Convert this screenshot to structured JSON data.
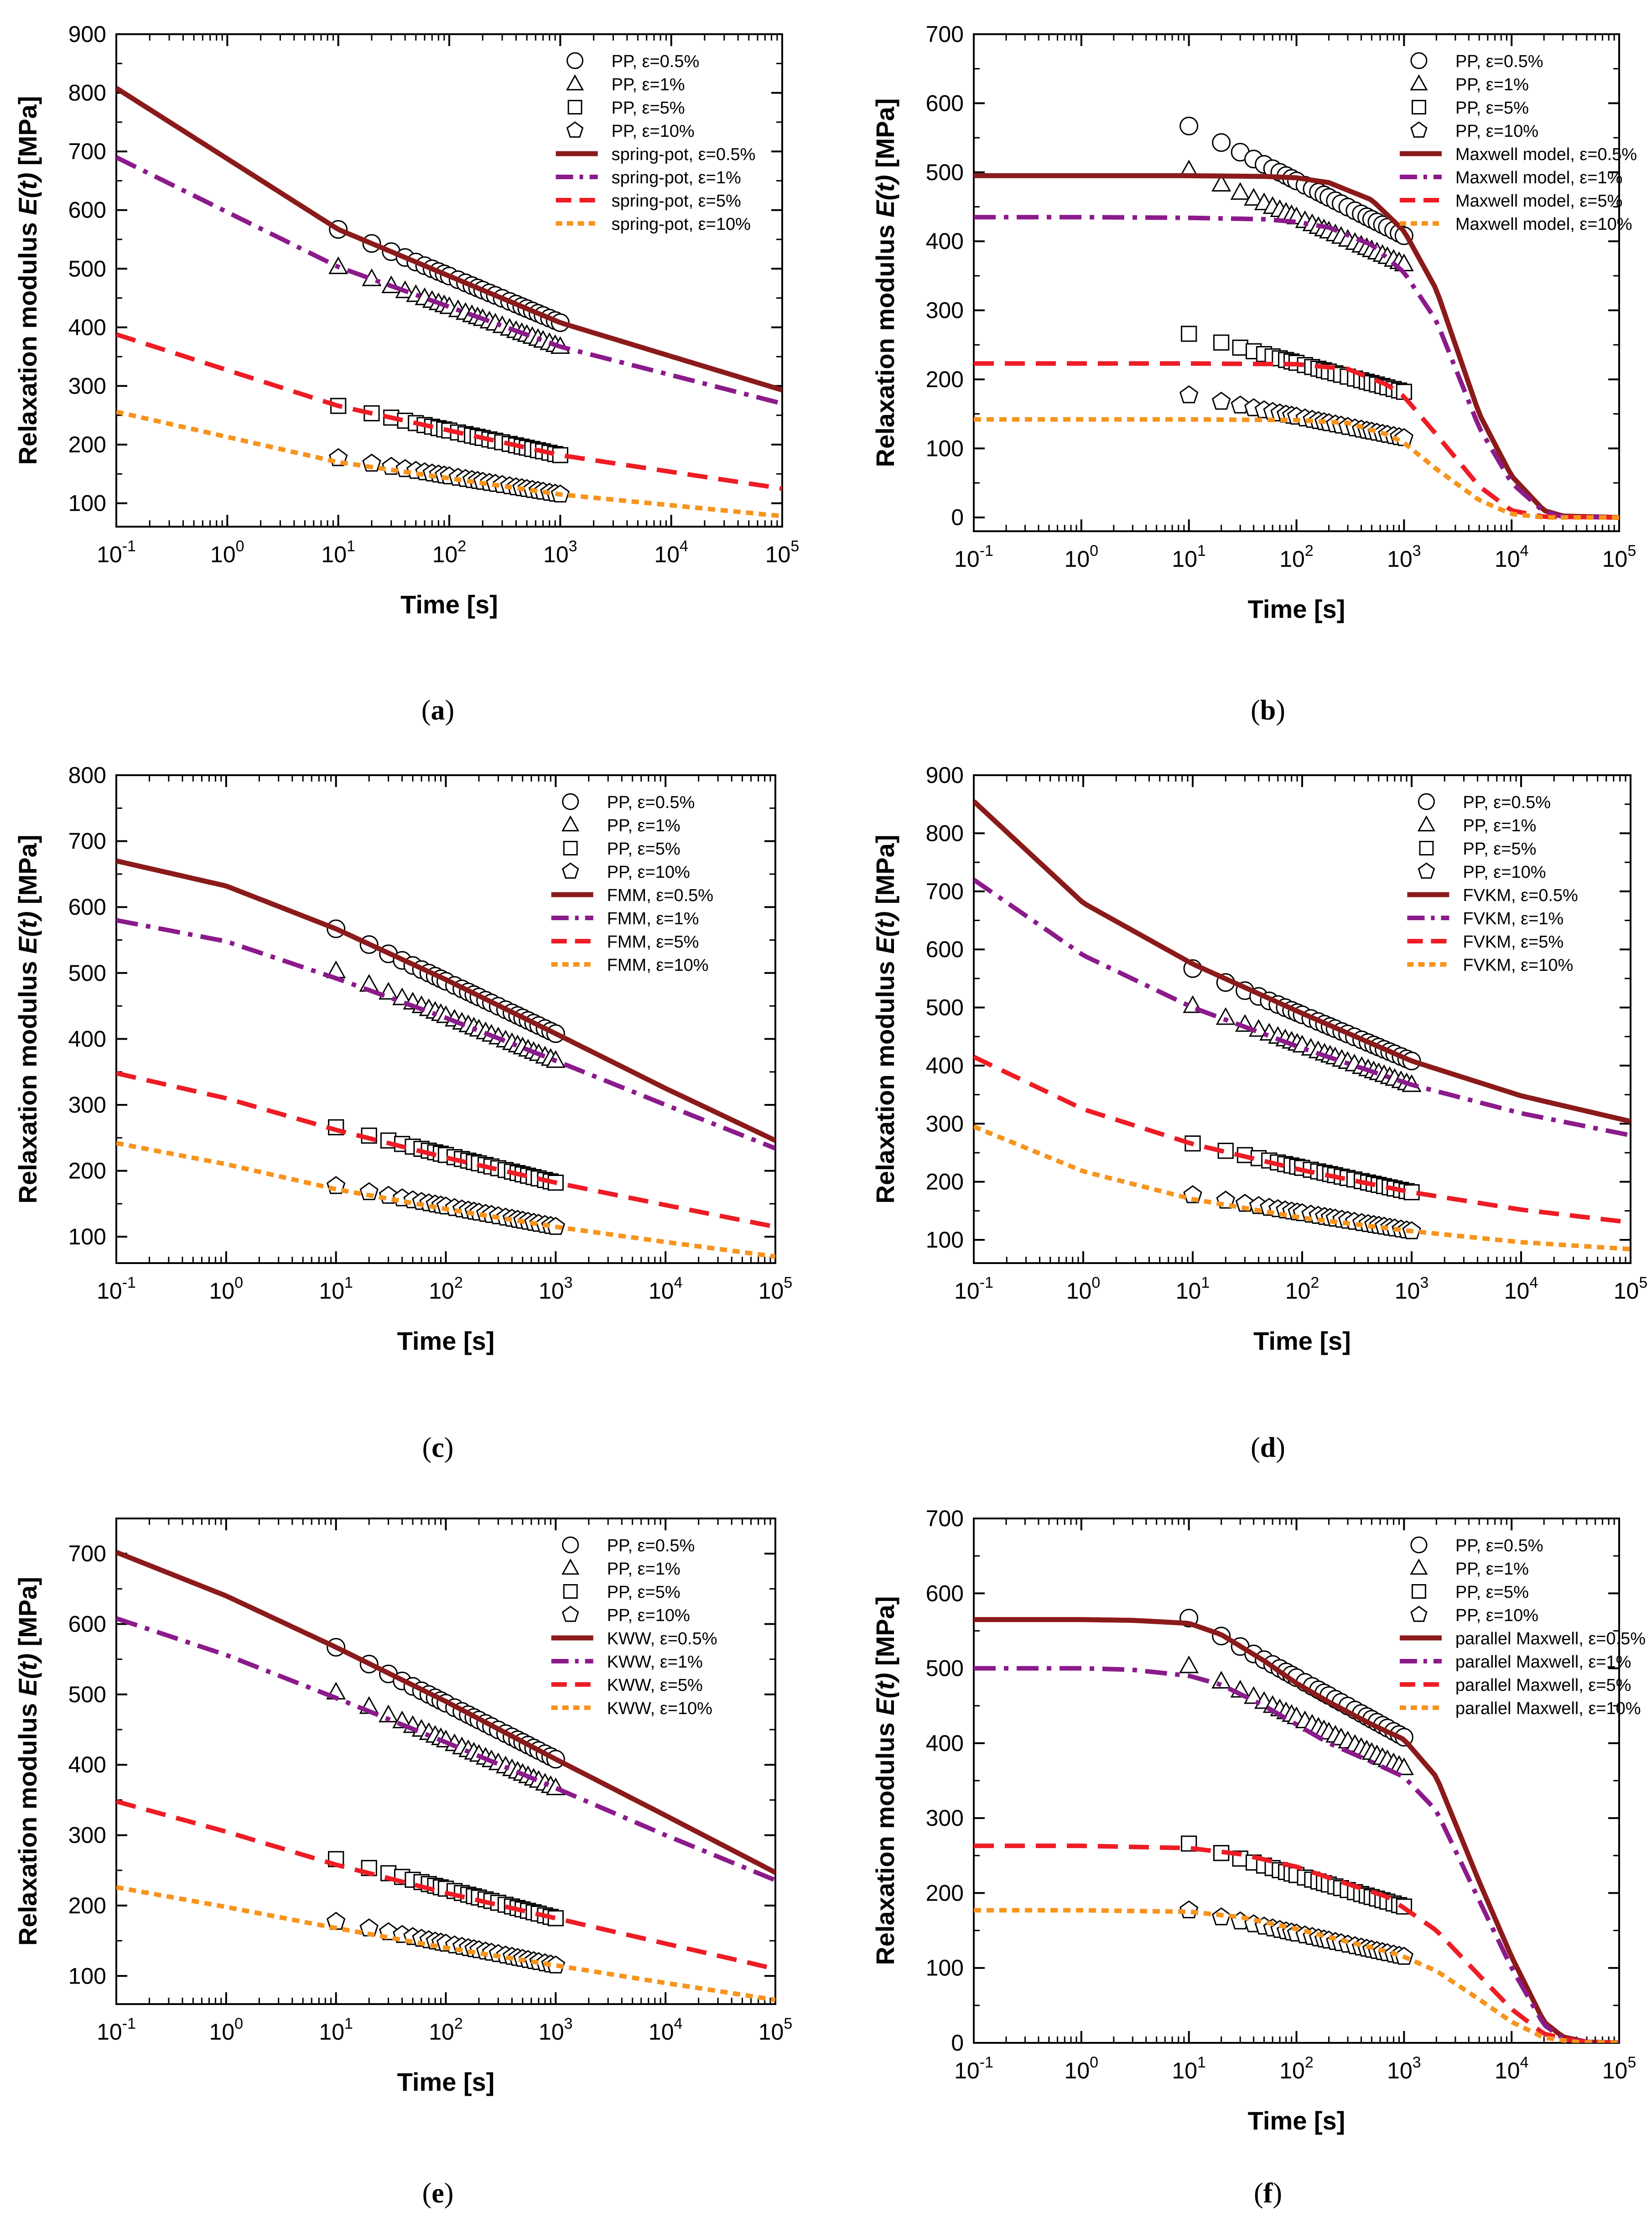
{
  "figure": {
    "colors": {
      "s05": "#8B1A1A",
      "s1": "#8B1A8B",
      "s5": "#EE1C24",
      "s10": "#F7941D",
      "marker_stroke": "#000000",
      "axis": "#000000"
    },
    "data_markers": {
      "x": [
        10,
        20,
        30,
        40,
        50,
        60,
        70,
        80,
        90,
        100,
        120,
        140,
        160,
        180,
        200,
        230,
        260,
        300,
        350,
        400,
        450,
        500,
        560,
        630,
        700,
        800,
        900,
        1000
      ],
      "labels": [
        "PP, ε=0.5%",
        "PP, ε=1%",
        "PP, ε=5%",
        "PP, ε=10%"
      ],
      "shapes": [
        "circle",
        "triangle",
        "square",
        "pentagon"
      ]
    }
  },
  "chart_data": [
    {
      "type": "line",
      "panel_label": "(a)",
      "xlabel": "Time [s]",
      "ylabel_prefix": "Relaxation modulus ",
      "ylabel_italic": "E(t)",
      "ylabel_suffix": " [MPa]",
      "x_scale": "log",
      "xlim": [
        0.1,
        100000
      ],
      "ylim": [
        60,
        900
      ],
      "yticks": [
        100,
        200,
        300,
        400,
        500,
        600,
        700,
        800,
        900
      ],
      "legend_position": "top-right",
      "experimental": [
        {
          "name": "PP, ε=0.5%",
          "marker": "circle",
          "y_at_10": 567,
          "y_at_1000": 408
        },
        {
          "name": "PP, ε=1%",
          "marker": "triangle",
          "y_at_10": 503,
          "y_at_1000": 367
        },
        {
          "name": "PP, ε=5%",
          "marker": "square",
          "y_at_10": 266,
          "y_at_1000": 182
        },
        {
          "name": "PP, ε=10%",
          "marker": "pentagon",
          "y_at_10": 177,
          "y_at_1000": 115
        }
      ],
      "series": [
        {
          "name": "spring-pot, ε=0.5%",
          "style": "solid",
          "color_key": "s05",
          "x": [
            0.1,
            10,
            1000,
            100000
          ],
          "y": [
            808,
            567,
            408,
            293
          ]
        },
        {
          "name": "spring-pot, ε=1%",
          "style": "dashdot",
          "color_key": "s1",
          "x": [
            0.1,
            10,
            1000,
            100000
          ],
          "y": [
            690,
            503,
            367,
            270
          ]
        },
        {
          "name": "spring-pot, ε=5%",
          "style": "dash",
          "color_key": "s5",
          "x": [
            0.1,
            10,
            1000,
            100000
          ],
          "y": [
            388,
            266,
            182,
            125
          ]
        },
        {
          "name": "spring-pot, ε=10%",
          "style": "dot",
          "color_key": "s10",
          "x": [
            0.1,
            10,
            1000,
            100000
          ],
          "y": [
            256,
            170,
            115,
            78
          ]
        }
      ]
    },
    {
      "type": "line",
      "panel_label": "(b)",
      "xlabel": "Time [s]",
      "ylabel_prefix": "Relaxation modulus ",
      "ylabel_italic": "E(t)",
      "ylabel_suffix": " [MPa]",
      "x_scale": "log",
      "xlim": [
        0.1,
        100000
      ],
      "ylim": [
        -20,
        700
      ],
      "yticks": [
        0,
        100,
        200,
        300,
        400,
        500,
        600,
        700
      ],
      "legend_position": "top-right",
      "experimental": [
        {
          "name": "PP, ε=0.5%",
          "marker": "circle",
          "y_at_10": 567,
          "y_at_1000": 408
        },
        {
          "name": "PP, ε=1%",
          "marker": "triangle",
          "y_at_10": 503,
          "y_at_1000": 367
        },
        {
          "name": "PP, ε=5%",
          "marker": "square",
          "y_at_10": 266,
          "y_at_1000": 182
        },
        {
          "name": "PP, ε=10%",
          "marker": "pentagon",
          "y_at_10": 177,
          "y_at_1000": 115
        }
      ],
      "series": [
        {
          "name": "Maxwell model, ε=0.5%",
          "style": "solid",
          "color_key": "s05",
          "x": [
            0.1,
            1,
            10,
            50,
            100,
            200,
            500,
            1000,
            2000,
            5000,
            10000,
            20000,
            30000,
            100000
          ],
          "y": [
            495,
            495,
            495,
            494,
            492,
            485,
            460,
            415,
            330,
            150,
            60,
            10,
            2,
            0
          ]
        },
        {
          "name": "Maxwell model, ε=1%",
          "style": "dashdot",
          "color_key": "s1",
          "x": [
            0.1,
            1,
            10,
            50,
            100,
            200,
            500,
            1000,
            2000,
            5000,
            10000,
            20000,
            30000,
            100000
          ],
          "y": [
            435,
            435,
            434,
            432,
            428,
            420,
            395,
            355,
            285,
            130,
            50,
            8,
            1,
            0
          ]
        },
        {
          "name": "Maxwell model, ε=5%",
          "style": "dash",
          "color_key": "s5",
          "x": [
            0.1,
            1,
            10,
            100,
            300,
            700,
            1000,
            2000,
            5000,
            10000,
            20000,
            100000
          ],
          "y": [
            223,
            223,
            223,
            222,
            215,
            192,
            175,
            120,
            45,
            10,
            1,
            0
          ]
        },
        {
          "name": "Maxwell model, ε=10%",
          "style": "dot",
          "color_key": "s10",
          "x": [
            0.1,
            1,
            10,
            100,
            300,
            700,
            1000,
            2000,
            5000,
            10000,
            20000,
            100000
          ],
          "y": [
            142,
            142,
            142,
            141,
            137,
            120,
            108,
            70,
            25,
            5,
            0,
            0
          ]
        }
      ]
    },
    {
      "type": "line",
      "panel_label": "(c)",
      "xlabel": "Time [s]",
      "ylabel_prefix": "Relaxation modulus ",
      "ylabel_italic": "E(t)",
      "ylabel_suffix": " [MPa]",
      "x_scale": "log",
      "xlim": [
        0.1,
        100000
      ],
      "ylim": [
        60,
        800
      ],
      "yticks": [
        100,
        200,
        300,
        400,
        500,
        600,
        700,
        800
      ],
      "legend_position": "top-right",
      "experimental": [
        {
          "name": "PP, ε=0.5%",
          "marker": "circle",
          "y_at_10": 567,
          "y_at_1000": 408
        },
        {
          "name": "PP, ε=1%",
          "marker": "triangle",
          "y_at_10": 503,
          "y_at_1000": 367
        },
        {
          "name": "PP, ε=5%",
          "marker": "square",
          "y_at_10": 266,
          "y_at_1000": 182
        },
        {
          "name": "PP, ε=10%",
          "marker": "pentagon",
          "y_at_10": 177,
          "y_at_1000": 115
        }
      ],
      "series": [
        {
          "name": "FMM, ε=0.5%",
          "style": "solid",
          "color_key": "s05",
          "x": [
            0.1,
            1,
            10,
            100,
            1000,
            10000,
            100000
          ],
          "y": [
            670,
            632,
            567,
            490,
            408,
            325,
            246
          ]
        },
        {
          "name": "FMM, ε=1%",
          "style": "dashdot",
          "color_key": "s1",
          "x": [
            0.1,
            1,
            10,
            100,
            1000,
            10000,
            100000
          ],
          "y": [
            580,
            548,
            492,
            432,
            367,
            300,
            234
          ]
        },
        {
          "name": "FMM, ε=5%",
          "style": "dash",
          "color_key": "s5",
          "x": [
            0.1,
            1,
            10,
            100,
            1000,
            10000,
            100000
          ],
          "y": [
            348,
            310,
            262,
            220,
            182,
            148,
            115
          ]
        },
        {
          "name": "FMM, ε=10%",
          "style": "dot",
          "color_key": "s10",
          "x": [
            0.1,
            1,
            10,
            100,
            1000,
            10000,
            100000
          ],
          "y": [
            242,
            210,
            172,
            142,
            115,
            92,
            70
          ]
        }
      ]
    },
    {
      "type": "line",
      "panel_label": "(d)",
      "xlabel": "Time [s]",
      "ylabel_prefix": "Relaxation modulus ",
      "ylabel_italic": "E(t)",
      "ylabel_suffix": " [MPa]",
      "x_scale": "log",
      "xlim": [
        0.1,
        100000
      ],
      "ylim": [
        60,
        900
      ],
      "yticks": [
        100,
        200,
        300,
        400,
        500,
        600,
        700,
        800,
        900
      ],
      "legend_position": "top-right",
      "experimental": [
        {
          "name": "PP, ε=0.5%",
          "marker": "circle",
          "y_at_10": 567,
          "y_at_1000": 408
        },
        {
          "name": "PP, ε=1%",
          "marker": "triangle",
          "y_at_10": 503,
          "y_at_1000": 367
        },
        {
          "name": "PP, ε=5%",
          "marker": "square",
          "y_at_10": 266,
          "y_at_1000": 182
        },
        {
          "name": "PP, ε=10%",
          "marker": "pentagon",
          "y_at_10": 177,
          "y_at_1000": 115
        }
      ],
      "series": [
        {
          "name": "FVKM, ε=0.5%",
          "style": "solid",
          "color_key": "s05",
          "x": [
            0.1,
            1,
            10,
            100,
            1000,
            10000,
            100000
          ],
          "y": [
            855,
            680,
            575,
            490,
            408,
            348,
            304
          ]
        },
        {
          "name": "FVKM, ε=1%",
          "style": "dashdot",
          "color_key": "s1",
          "x": [
            0.1,
            1,
            10,
            100,
            1000,
            10000,
            100000
          ],
          "y": [
            720,
            590,
            500,
            430,
            367,
            318,
            280
          ]
        },
        {
          "name": "FVKM, ε=5%",
          "style": "dash",
          "color_key": "s5",
          "x": [
            0.1,
            1,
            10,
            100,
            1000,
            10000,
            100000
          ],
          "y": [
            415,
            325,
            265,
            220,
            182,
            152,
            130
          ]
        },
        {
          "name": "FVKM, ε=10%",
          "style": "dot",
          "color_key": "s10",
          "x": [
            0.1,
            1,
            10,
            100,
            1000,
            10000,
            100000
          ],
          "y": [
            295,
            218,
            170,
            138,
            115,
            96,
            84
          ]
        }
      ]
    },
    {
      "type": "line",
      "panel_label": "(e)",
      "xlabel": "Time [s]",
      "ylabel_prefix": "Relaxation modulus ",
      "ylabel_italic": "E(t)",
      "ylabel_suffix": " [MPa]",
      "x_scale": "log",
      "xlim": [
        0.1,
        100000
      ],
      "ylim": [
        60,
        750
      ],
      "yticks": [
        100,
        200,
        300,
        400,
        500,
        600,
        700
      ],
      "legend_position": "top-right",
      "experimental": [
        {
          "name": "PP, ε=0.5%",
          "marker": "circle",
          "y_at_10": 567,
          "y_at_1000": 408
        },
        {
          "name": "PP, ε=1%",
          "marker": "triangle",
          "y_at_10": 503,
          "y_at_1000": 367
        },
        {
          "name": "PP, ε=5%",
          "marker": "square",
          "y_at_10": 266,
          "y_at_1000": 182
        },
        {
          "name": "PP, ε=10%",
          "marker": "pentagon",
          "y_at_10": 177,
          "y_at_1000": 115
        }
      ],
      "series": [
        {
          "name": "KWW, ε=0.5%",
          "style": "solid",
          "color_key": "s05",
          "x": [
            0.1,
            1,
            10,
            100,
            1000,
            10000,
            100000
          ],
          "y": [
            702,
            640,
            567,
            490,
            408,
            328,
            247
          ]
        },
        {
          "name": "KWW, ε=1%",
          "style": "dashdot",
          "color_key": "s1",
          "x": [
            0.1,
            1,
            10,
            100,
            1000,
            10000,
            100000
          ],
          "y": [
            608,
            556,
            495,
            432,
            367,
            300,
            236
          ]
        },
        {
          "name": "KWW, ε=5%",
          "style": "dash",
          "color_key": "s5",
          "x": [
            0.1,
            1,
            10,
            100,
            1000,
            10000,
            100000
          ],
          "y": [
            348,
            305,
            258,
            218,
            182,
            146,
            110
          ]
        },
        {
          "name": "KWW, ε=10%",
          "style": "dot",
          "color_key": "s10",
          "x": [
            0.1,
            1,
            10,
            100,
            1000,
            10000,
            100000
          ],
          "y": [
            226,
            198,
            168,
            140,
            115,
            90,
            66
          ]
        }
      ]
    },
    {
      "type": "line",
      "panel_label": "(f)",
      "xlabel": "Time [s]",
      "ylabel_prefix": "Relaxation modulus ",
      "ylabel_italic": "E(t)",
      "ylabel_suffix": " [MPa]",
      "x_scale": "log",
      "xlim": [
        0.1,
        100000
      ],
      "ylim": [
        0,
        700
      ],
      "yticks": [
        0,
        100,
        200,
        300,
        400,
        500,
        600,
        700
      ],
      "legend_position": "top-right",
      "experimental": [
        {
          "name": "PP, ε=0.5%",
          "marker": "circle",
          "y_at_10": 567,
          "y_at_1000": 408
        },
        {
          "name": "PP, ε=1%",
          "marker": "triangle",
          "y_at_10": 503,
          "y_at_1000": 367
        },
        {
          "name": "PP, ε=5%",
          "marker": "square",
          "y_at_10": 266,
          "y_at_1000": 182
        },
        {
          "name": "PP, ε=10%",
          "marker": "pentagon",
          "y_at_10": 177,
          "y_at_1000": 115
        }
      ],
      "series": [
        {
          "name": "parallel Maxwell, ε=0.5%",
          "style": "solid",
          "color_key": "s05",
          "x": [
            0.1,
            1,
            3,
            10,
            20,
            50,
            100,
            200,
            500,
            1000,
            2000,
            5000,
            10000,
            20000,
            30000,
            50000,
            100000
          ],
          "y": [
            565,
            565,
            564,
            560,
            545,
            510,
            480,
            455,
            425,
            405,
            355,
            215,
            115,
            28,
            8,
            1,
            0
          ]
        },
        {
          "name": "parallel Maxwell, ε=1%",
          "style": "dashdot",
          "color_key": "s1",
          "x": [
            0.1,
            1,
            3,
            10,
            20,
            50,
            100,
            200,
            500,
            1000,
            2000,
            5000,
            10000,
            20000,
            30000,
            50000,
            100000
          ],
          "y": [
            500,
            500,
            498,
            490,
            478,
            450,
            425,
            400,
            375,
            355,
            310,
            190,
            100,
            24,
            6,
            1,
            0
          ]
        },
        {
          "name": "parallel Maxwell, ε=5%",
          "style": "dash",
          "color_key": "s5",
          "x": [
            0.1,
            1,
            10,
            30,
            100,
            300,
            700,
            1000,
            2000,
            5000,
            10000,
            20000,
            40000,
            100000
          ],
          "y": [
            263,
            263,
            260,
            252,
            235,
            212,
            195,
            180,
            150,
            90,
            45,
            12,
            2,
            0
          ]
        },
        {
          "name": "parallel Maxwell, ε=10%",
          "style": "dot",
          "color_key": "s10",
          "x": [
            0.1,
            1,
            10,
            30,
            100,
            300,
            700,
            1000,
            2000,
            5000,
            10000,
            20000,
            40000,
            100000
          ],
          "y": [
            177,
            177,
            175,
            168,
            152,
            135,
            122,
            115,
            96,
            58,
            28,
            7,
            1,
            0
          ]
        }
      ]
    }
  ]
}
